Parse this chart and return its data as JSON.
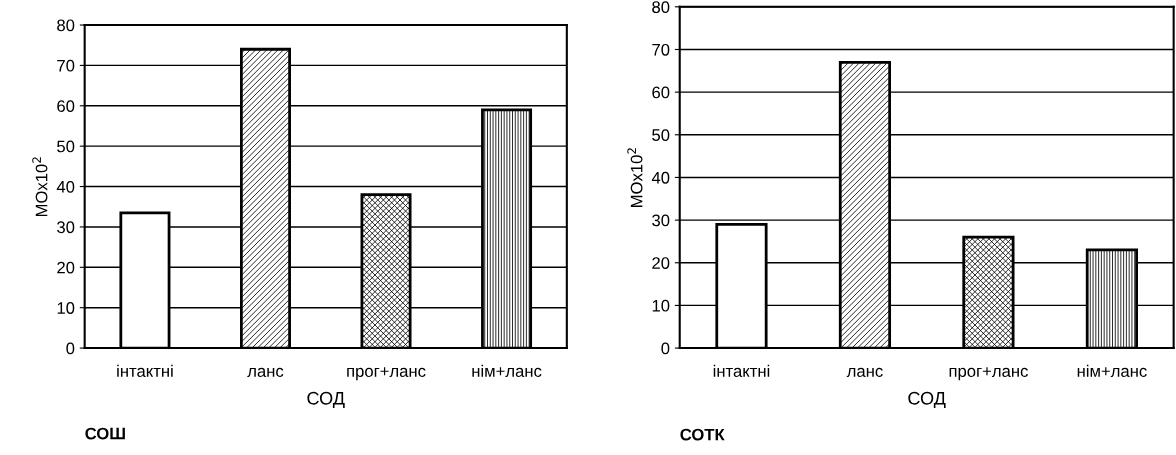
{
  "chart_data": [
    {
      "type": "bar",
      "title": "СОШ",
      "xlabel": "СОД",
      "ylabel": "МОx10$^{2}$",
      "categories": [
        "інтактні",
        "ланс",
        "прог+ланс",
        "нім+ланс"
      ],
      "values": [
        33.5,
        74,
        38,
        59
      ],
      "colors": [
        "#ffffff",
        "#000000",
        "#000000",
        "#000000"
      ],
      "ylim": [
        0,
        80
      ],
      "yticks": [
        0,
        10,
        20,
        30,
        40,
        50,
        60,
        70,
        80
      ],
      "grid": "y"
    },
    {
      "type": "bar",
      "title": "СОТК",
      "xlabel": "СОД",
      "ylabel": "МОx10$^{2}$",
      "categories": [
        "інтактні",
        "ланс",
        "прог+ланс",
        "нім+ланс"
      ],
      "values": [
        29,
        67,
        26,
        23
      ],
      "colors": [
        "#ffffff",
        "#000000",
        "#000000",
        "#000000"
      ],
      "ylim": [
        0,
        80
      ],
      "yticks": [
        0,
        10,
        20,
        30,
        40,
        50,
        60,
        70,
        80
      ],
      "grid": "y"
    }
  ]
}
